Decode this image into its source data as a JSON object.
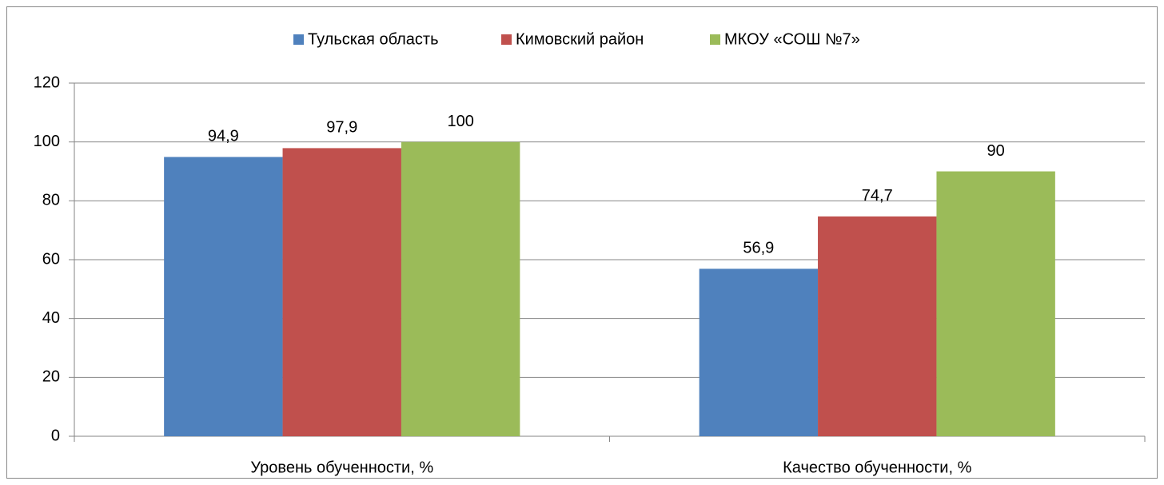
{
  "chart_data": {
    "type": "bar",
    "categories": [
      "Уровень обученности, %",
      "Качество обученности, %"
    ],
    "series": [
      {
        "name": "Тульская область",
        "color": "#4f81bd",
        "values": [
          94.9,
          56.9
        ],
        "value_labels": [
          "94,9",
          "56,9"
        ]
      },
      {
        "name": "Кимовский район",
        "color": "#c0504d",
        "values": [
          97.9,
          74.7
        ],
        "value_labels": [
          "97,9",
          "74,7"
        ]
      },
      {
        "name": "МКОУ «СОШ №7»",
        "color": "#9bbb59",
        "values": [
          100,
          90
        ],
        "value_labels": [
          "100",
          "90"
        ]
      }
    ],
    "ylim": [
      0,
      120
    ],
    "yticks": [
      0,
      20,
      40,
      60,
      80,
      100,
      120
    ],
    "grid": true,
    "legend": "top"
  }
}
